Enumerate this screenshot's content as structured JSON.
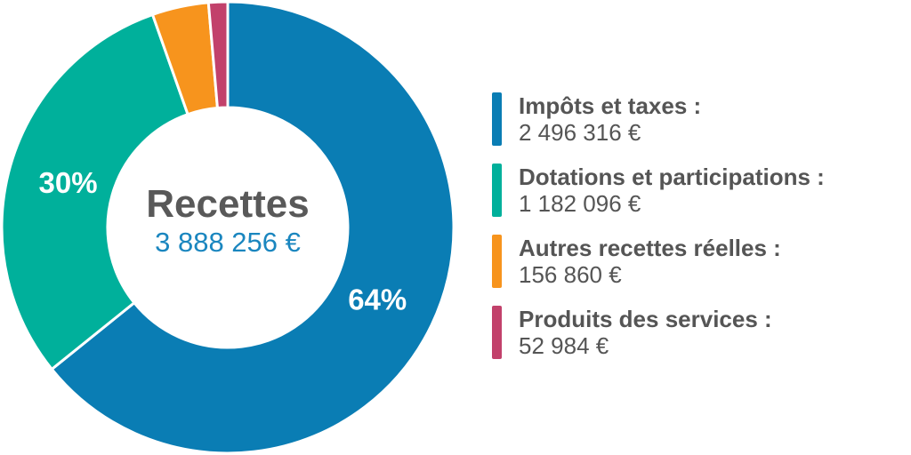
{
  "chart_data": {
    "type": "pie",
    "variant": "donut",
    "center": {
      "title": "Recettes",
      "value": "3 888 256 €"
    },
    "slices": [
      {
        "name": "Impôts et taxes :",
        "value": 2496316,
        "value_label": "2 496 316 €",
        "percent_label": "64%",
        "color": "#0a7db4"
      },
      {
        "name": "Dotations et participations :",
        "value": 1182096,
        "value_label": "1 182 096 €",
        "percent_label": "30%",
        "color": "#00b09b"
      },
      {
        "name": "Autres recettes réelles :",
        "value": 156860,
        "value_label": "156 860 €",
        "percent_label": "",
        "color": "#f7941d"
      },
      {
        "name": "Produits des services :",
        "value": 52984,
        "value_label": "52 984 €",
        "percent_label": "",
        "color": "#c2416b"
      }
    ],
    "total": 3888256,
    "legend_position": "right"
  }
}
